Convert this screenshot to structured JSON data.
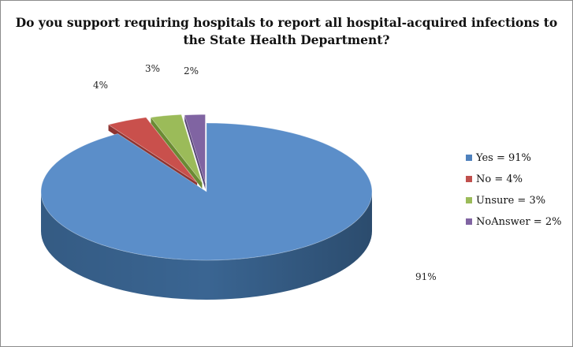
{
  "chart_data": {
    "type": "pie",
    "style": "3d-exploded",
    "title_lines": [
      "Do you support requiring hospitals to report all hospital-acquired infections to",
      "the State Health Department?"
    ],
    "categories": [
      "Yes",
      "No",
      "Unsure",
      "NoAnswer"
    ],
    "values": [
      91,
      4,
      3,
      2
    ],
    "data_labels": [
      "91%",
      "4%",
      "3%",
      "2%"
    ],
    "legend_labels": [
      "Yes = 91%",
      "No = 4%",
      "Unsure = 3%",
      "NoAnswer = 2%"
    ],
    "legend_position": "right",
    "colors": {
      "top": [
        "#5b8ec9",
        "#c9504c",
        "#9bbb59",
        "#8064a2"
      ],
      "side": [
        "#3a6592",
        "#8e3431",
        "#6b8a34",
        "#564475"
      ],
      "legend": [
        "#4f81bd",
        "#c0504d",
        "#9bbb59",
        "#8064a2"
      ]
    }
  }
}
